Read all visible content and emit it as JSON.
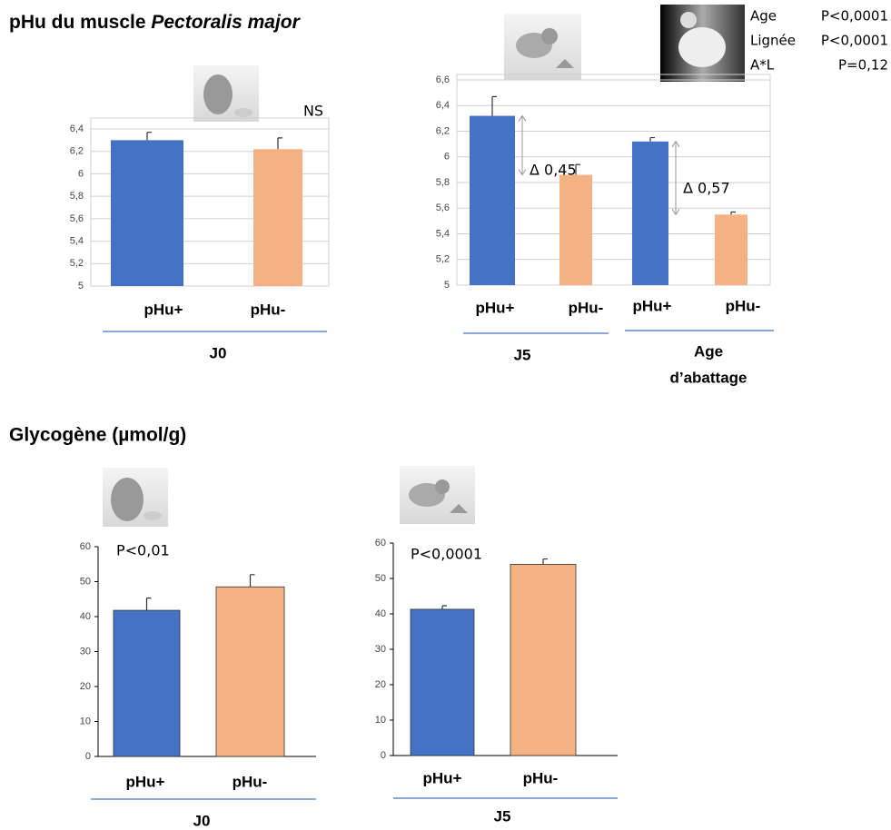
{
  "headings": [
    {
      "text": "pHu du muscle",
      "italic": "Pectoralis major"
    },
    {
      "text": "Glycogène (µmol/g)"
    }
  ],
  "chart_data": [
    {
      "type": "bar",
      "categories": [
        "pHu+",
        "pHu-"
      ],
      "values": [
        6.3,
        6.22
      ],
      "errors": [
        0.07,
        0.1
      ],
      "colors": [
        "#4472c4",
        "#f4b183"
      ],
      "label_colors": [
        "#4472c4",
        "#ed7d31"
      ],
      "ylim": [
        5,
        6.4
      ],
      "yticks": [
        5,
        {
          "value": 5.2,
          "label": "5,2"
        },
        {
          "value": 5.4,
          "label": "5,4"
        },
        {
          "value": 5.6,
          "label": "5,6"
        },
        {
          "value": 5.8,
          "label": "5,8"
        },
        6,
        {
          "value": 6.2,
          "label": "6,2"
        },
        {
          "value": 6.4,
          "label": "6,4"
        }
      ],
      "grid": true,
      "annotations": [
        "NS"
      ],
      "groups": [
        {
          "label": [
            "J0"
          ]
        }
      ]
    },
    {
      "type": "bar",
      "categories": [
        "pHu+",
        "pHu-",
        "pHu+",
        "pHu-"
      ],
      "values": [
        6.32,
        5.86,
        6.12,
        5.55
      ],
      "errors": [
        0.15,
        0.08,
        0.03,
        0.02
      ],
      "colors": [
        "#4472c4",
        "#f4b183",
        "#4472c4",
        "#f4b183"
      ],
      "label_colors": [
        "#4472c4",
        "#ed7d31",
        "#4472c4",
        "#ed7d31"
      ],
      "ylim": [
        5,
        6.6
      ],
      "yticks": [
        5,
        {
          "value": 5.2,
          "label": "5,2"
        },
        {
          "value": 5.4,
          "label": "5,4"
        },
        {
          "value": 5.6,
          "label": "5,6"
        },
        {
          "value": 5.8,
          "label": "5,8"
        },
        6,
        {
          "value": 6.2,
          "label": "6,2"
        },
        {
          "value": 6.4,
          "label": "6,4"
        },
        {
          "value": 6.6,
          "label": "6,6"
        }
      ],
      "grid": true,
      "annotations": [
        "Δ 0,45",
        "Δ 0,57"
      ],
      "groups": [
        {
          "label": [
            "J5"
          ]
        },
        {
          "label": [
            "Age",
            "d’abattage"
          ]
        }
      ],
      "stats": [
        {
          "name": "Age",
          "p": "P<0,0001"
        },
        {
          "name": "Lignée",
          "p": "P<0,0001"
        },
        {
          "name": "A*L",
          "p": "P=0,12"
        }
      ]
    },
    {
      "type": "bar",
      "categories": [
        "pHu+",
        "pHu-"
      ],
      "values": [
        41.8,
        48.5
      ],
      "errors": [
        3.5,
        3.5
      ],
      "colors": [
        "#4472c4",
        "#f4b183"
      ],
      "label_colors": [
        "#4472c4",
        "#ed7d31"
      ],
      "ylim": [
        0,
        60
      ],
      "yticks": [
        0,
        10,
        20,
        30,
        40,
        50,
        60
      ],
      "grid": false,
      "annotations": [
        "P<0,01"
      ],
      "groups": [
        {
          "label": [
            "J0"
          ]
        }
      ]
    },
    {
      "type": "bar",
      "categories": [
        "pHu+",
        "pHu-"
      ],
      "values": [
        41.3,
        54
      ],
      "errors": [
        1,
        1.5
      ],
      "colors": [
        "#4472c4",
        "#f4b183"
      ],
      "label_colors": [
        "#4472c4",
        "#ed7d31"
      ],
      "ylim": [
        0,
        60
      ],
      "yticks": [
        0,
        10,
        20,
        30,
        40,
        50,
        60
      ],
      "grid": false,
      "annotations": [
        "P<0,0001"
      ],
      "groups": [
        {
          "label": [
            "J5"
          ]
        }
      ]
    }
  ]
}
